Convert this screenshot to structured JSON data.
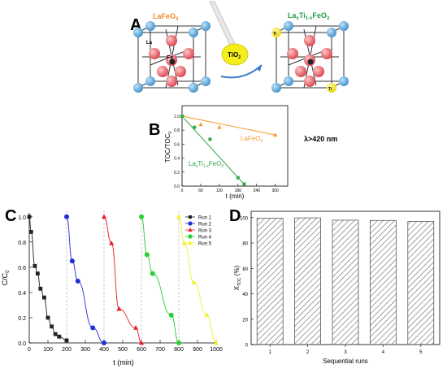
{
  "panels": {
    "a": {
      "letter": "A",
      "left_label": "LaFeO",
      "left_label_sub": "3",
      "right_label_main": "La",
      "right_label_x": "x",
      "right_label_ti": "Ti",
      "right_label_sub": "1-x",
      "right_label_end": "FeO",
      "right_label_end_sub": "3",
      "catalyst_label": "TiO",
      "catalyst_sub": "2",
      "la_label": "La",
      "fe_label": "Fe",
      "ti_label": "Ti",
      "colors": {
        "la_atom": "#5aa8d8",
        "o_atom": "#e4606b",
        "fe_atom": "#222222",
        "ti_atom": "#f5ee1a",
        "lafeo3_text": "#f08a24",
        "doped_text": "#22a048",
        "arrow": "#3d7cc9"
      }
    },
    "b": {
      "letter": "B",
      "light_label": "λ>420 nm",
      "colors": {
        "lafeo3": "#f39c2a",
        "doped": "#31a84a"
      }
    },
    "c": {
      "letter": "C",
      "colors": [
        "#222222",
        "#1f2fd6",
        "#e8202a",
        "#27d02f",
        "#f1f12a"
      ]
    },
    "d": {
      "letter": "D"
    }
  },
  "chart_data": [
    {
      "id": "panel-b",
      "type": "scatter",
      "xlabel": "t (min)",
      "ylabel": "TOC/TOC",
      "ylabel_sub": "0",
      "xticks": [
        0,
        60,
        120,
        180,
        240,
        300
      ],
      "yticks": [
        0.0,
        0.2,
        0.4,
        0.6,
        0.8,
        1.0
      ],
      "xlim": [
        0,
        340
      ],
      "ylim": [
        0,
        1.15
      ],
      "series": [
        {
          "name": "LaFeO3",
          "label_main": "LaFeO",
          "label_sub": "3",
          "marker": "triangle",
          "x": [
            0,
            60,
            120,
            300
          ],
          "y": [
            1.0,
            0.88,
            0.84,
            0.73
          ],
          "fit": {
            "x": [
              0,
              300
            ],
            "y": [
              1.0,
              0.73
            ]
          }
        },
        {
          "name": "LaxTi1-xFeO3",
          "label_main": "La",
          "label_x": "x",
          "label_ti": "Ti",
          "label_sub": "1-x",
          "label_end": "FeO",
          "label_end_sub": "3",
          "marker": "square",
          "x": [
            0,
            40,
            90,
            180,
            200
          ],
          "y": [
            1.0,
            0.84,
            0.67,
            0.12,
            0.03
          ],
          "fit": {
            "x": [
              0,
              205
            ],
            "y": [
              1.0,
              0.0
            ]
          }
        }
      ]
    },
    {
      "id": "panel-c",
      "type": "line",
      "xlabel": "t (min)",
      "ylabel": "C/C",
      "ylabel_sub": "0",
      "xticks": [
        0,
        100,
        200,
        300,
        400,
        500,
        600,
        700,
        800,
        900,
        1000
      ],
      "yticks": [
        0.0,
        0.2,
        0.4,
        0.6,
        0.8,
        1.0
      ],
      "xlim": [
        0,
        1000
      ],
      "ylim": [
        0,
        1.05
      ],
      "dividers": [
        200,
        400,
        600,
        800
      ],
      "series": [
        {
          "name": "Run 1",
          "marker": "square",
          "x": [
            0,
            10,
            30,
            45,
            60,
            80,
            100,
            120,
            140,
            160,
            200
          ],
          "y": [
            1.0,
            0.88,
            0.61,
            0.55,
            0.43,
            0.36,
            0.2,
            0.13,
            0.07,
            0.05,
            0.02
          ]
        },
        {
          "name": "Run 2",
          "marker": "circle",
          "x": [
            200,
            230,
            260,
            340,
            400
          ],
          "y": [
            1.0,
            0.65,
            0.49,
            0.12,
            0.0
          ]
        },
        {
          "name": "Run 3",
          "marker": "triangle",
          "x": [
            400,
            440,
            480,
            570,
            600
          ],
          "y": [
            1.0,
            0.79,
            0.27,
            0.12,
            0.0
          ]
        },
        {
          "name": "Run 4",
          "marker": "circle",
          "x": [
            600,
            630,
            660,
            760,
            800
          ],
          "y": [
            1.0,
            0.7,
            0.55,
            0.22,
            0.0
          ]
        },
        {
          "name": "Run 5",
          "marker": "triangle",
          "x": [
            800,
            830,
            880,
            950,
            1000
          ],
          "y": [
            1.0,
            0.79,
            0.48,
            0.22,
            0.0
          ]
        }
      ]
    },
    {
      "id": "panel-d",
      "type": "bar",
      "xlabel": "Sequential runs",
      "ylabel": "X",
      "ylabel_sub": "TOC",
      "ylabel_unit": "(%)",
      "categories": [
        "1",
        "2",
        "3",
        "4",
        "5"
      ],
      "values": [
        99.5,
        99.8,
        98.0,
        97.8,
        97.0
      ],
      "yticks": [
        0,
        20,
        40,
        60,
        80,
        100
      ],
      "ylim": [
        0,
        105
      ]
    }
  ]
}
